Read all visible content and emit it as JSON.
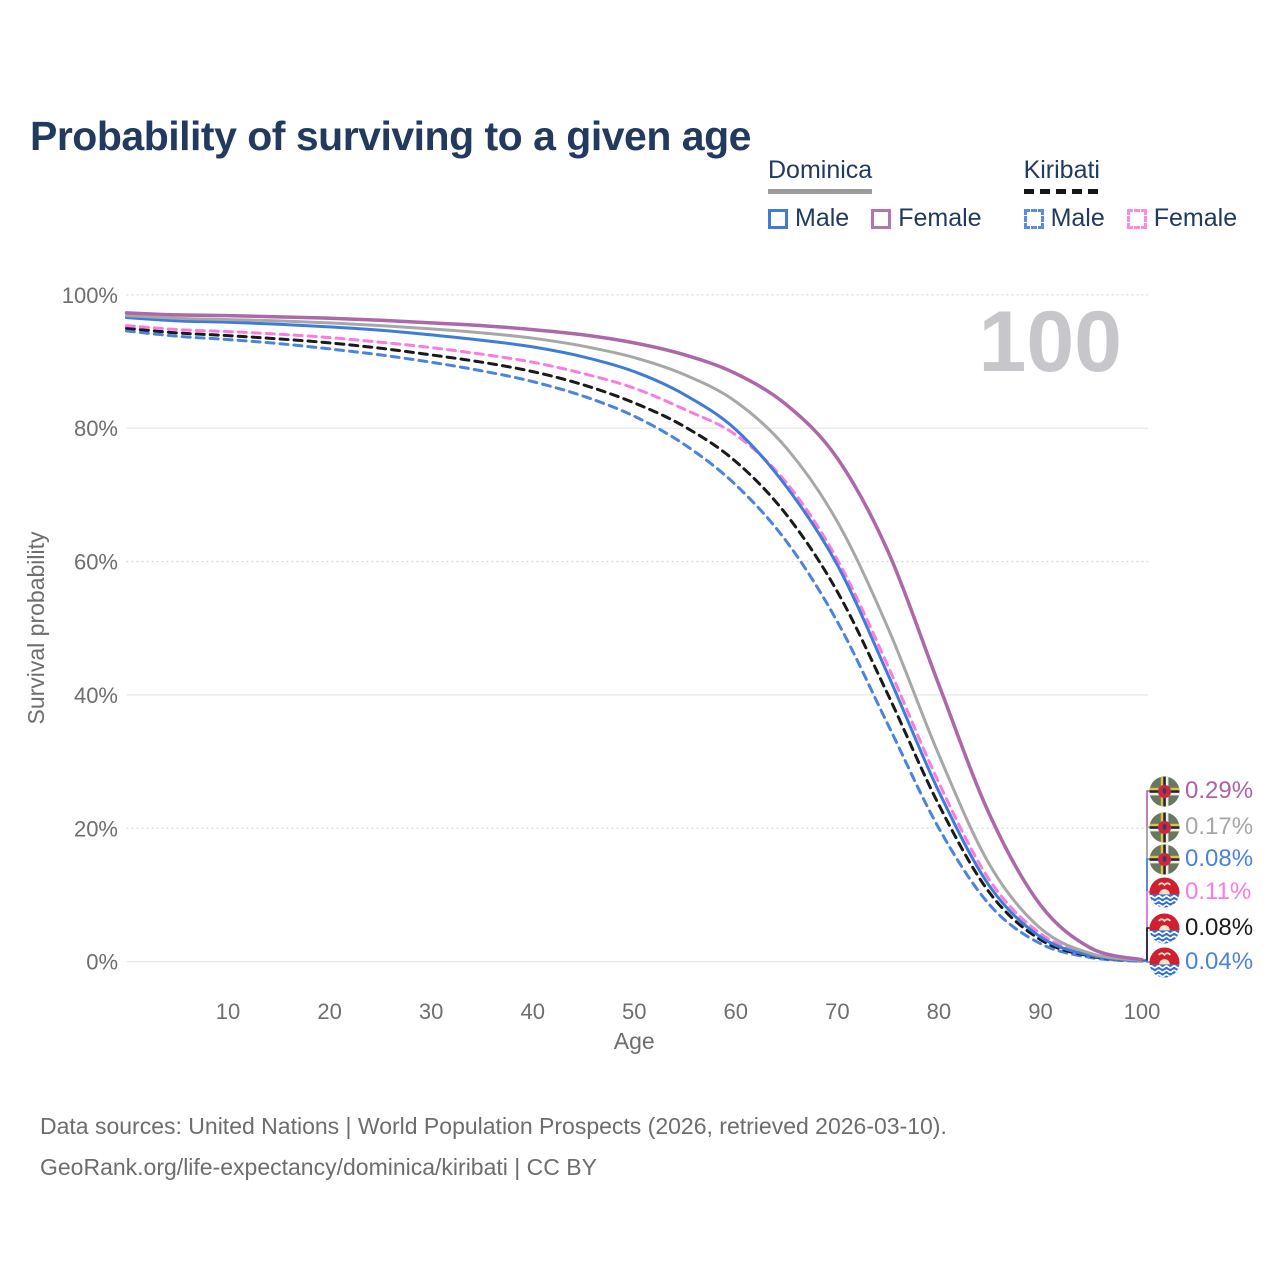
{
  "title": "Probability of surviving to a given age",
  "age_label": "100",
  "legend": {
    "groups": [
      {
        "name": "Dominica",
        "line_style": "solid",
        "items": [
          {
            "label": "Male",
            "color": "#3f7cd8",
            "dashed": false
          },
          {
            "label": "Female",
            "color": "#b573af",
            "dashed": false
          }
        ]
      },
      {
        "name": "Kiribati",
        "line_style": "dashed",
        "items": [
          {
            "label": "Male",
            "color": "#5b8be4",
            "dashed": true
          },
          {
            "label": "Female",
            "color": "#fc8ae4",
            "dashed": true
          }
        ]
      }
    ]
  },
  "chart_data": {
    "type": "line",
    "title": "Probability of surviving to a given age",
    "xlabel": "Age",
    "ylabel": "Survival probability",
    "xlim": [
      0,
      100
    ],
    "ylim": [
      0,
      100
    ],
    "x_ticks": [
      10,
      20,
      30,
      40,
      50,
      60,
      70,
      80,
      90,
      100
    ],
    "y_ticks": [
      0,
      20,
      40,
      60,
      80,
      100
    ],
    "y_tick_suffix": "%",
    "grid": "horizontal",
    "legend_position": "top-right",
    "age_label": "100",
    "x": [
      0,
      5,
      10,
      15,
      20,
      25,
      30,
      35,
      40,
      45,
      50,
      55,
      60,
      65,
      70,
      75,
      80,
      85,
      90,
      95,
      100
    ],
    "series": [
      {
        "name": "Dominica Female",
        "country": "Dominica",
        "sex": "Female",
        "color": "#ac68a8",
        "dash": false,
        "width": 3.5,
        "end_label": "0.29%",
        "end_label_color": "#ac62a4",
        "flag": "dominica",
        "values": [
          97.3,
          97.0,
          96.9,
          96.7,
          96.5,
          96.2,
          95.8,
          95.4,
          94.8,
          94.0,
          92.8,
          91.0,
          88.2,
          83.5,
          75.5,
          61.5,
          41.5,
          22.0,
          8.5,
          2.0,
          0.29
        ]
      },
      {
        "name": "Dominica Both sexes",
        "country": "Dominica",
        "sex": "Both",
        "color": "#a7a7a7",
        "dash": false,
        "width": 3,
        "end_label": "0.17%",
        "end_label_color": "#a7a7a7",
        "flag": "dominica",
        "values": [
          96.9,
          96.5,
          96.3,
          96.1,
          95.8,
          95.4,
          94.9,
          94.3,
          93.5,
          92.3,
          90.6,
          88.0,
          84.0,
          77.0,
          66.0,
          50.0,
          31.0,
          14.5,
          5.0,
          1.2,
          0.17
        ]
      },
      {
        "name": "Dominica Male",
        "country": "Dominica",
        "sex": "Male",
        "color": "#3f7cd8",
        "dash": false,
        "width": 3,
        "end_label": "0.08%",
        "end_label_color": "#4d82dc",
        "flag": "dominica",
        "values": [
          96.6,
          96.1,
          95.9,
          95.6,
          95.2,
          94.7,
          94.0,
          93.2,
          92.2,
          90.7,
          88.5,
          85.0,
          79.8,
          71.2,
          59.5,
          43.0,
          25.5,
          11.3,
          3.7,
          0.9,
          0.08
        ]
      },
      {
        "name": "Kiribati Female",
        "country": "Kiribati",
        "sex": "Female",
        "color": "#fb7ce1",
        "dash": true,
        "width": 3,
        "end_label": "0.11%",
        "end_label_color": "#fb7ce1",
        "flag": "kiribati",
        "values": [
          95.4,
          94.8,
          94.5,
          94.1,
          93.6,
          92.9,
          92.1,
          91.1,
          89.9,
          88.2,
          86.0,
          82.8,
          79.0,
          71.8,
          60.3,
          44.3,
          26.8,
          12.2,
          4.2,
          1.0,
          0.11
        ]
      },
      {
        "name": "Kiribati Both sexes",
        "country": "Kiribati",
        "sex": "Both",
        "color": "#1a1a1a",
        "dash": true,
        "width": 3,
        "end_label": "0.08%",
        "end_label_color": "#1a1a1a",
        "flag": "kiribati",
        "values": [
          95.0,
          94.3,
          93.9,
          93.4,
          92.8,
          92.0,
          91.0,
          89.9,
          88.5,
          86.5,
          83.8,
          80.2,
          75.0,
          67.0,
          55.5,
          40.0,
          23.5,
          10.3,
          3.3,
          0.8,
          0.08
        ]
      },
      {
        "name": "Kiribati Male",
        "country": "Kiribati",
        "sex": "Male",
        "color": "#4a84e0",
        "dash": true,
        "width": 3,
        "end_label": "0.04%",
        "end_label_color": "#4d82dc",
        "flag": "kiribati",
        "values": [
          94.6,
          93.8,
          93.3,
          92.7,
          91.9,
          91.0,
          89.9,
          88.6,
          87.0,
          84.8,
          81.8,
          77.5,
          71.5,
          63.0,
          51.0,
          35.5,
          20.0,
          8.5,
          2.7,
          0.6,
          0.04
        ]
      }
    ]
  },
  "footer": {
    "line1": "Data sources: United Nations | World Population Prospects (2026, retrieved 2026-03-10).",
    "line2": "GeoRank.org/life-expectancy/dominica/kiribati | CC BY"
  }
}
